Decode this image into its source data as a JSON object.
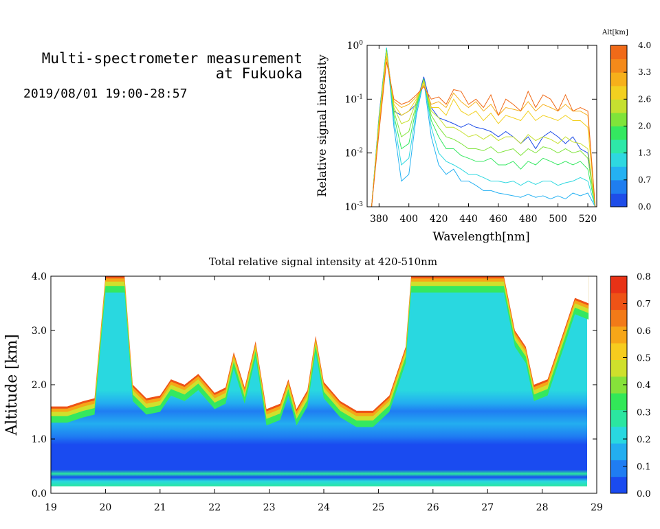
{
  "header": {
    "title_line1": "Multi-spectrometer measurement",
    "title_line2": "at Fukuoka",
    "date_range": "2019/08/01 19:00-28:57"
  },
  "chart_data": [
    {
      "type": "line",
      "xlabel": "Wavelength[nm]",
      "ylabel": "Relative signal intensity",
      "yscale": "log",
      "xlim": [
        372,
        526
      ],
      "ylim": [
        0.001,
        1
      ],
      "x_ticks": [
        "380",
        "400",
        "420",
        "440",
        "460",
        "480",
        "500",
        "520"
      ],
      "y_ticks": [
        "10^-3",
        "10^-2",
        "10^-1",
        "10^0"
      ],
      "colorbar": {
        "label": "Alt[km]",
        "ticks": [
          "0.0",
          "0.7",
          "1.3",
          "2.0",
          "2.6",
          "3.3",
          "4.0"
        ],
        "colors": [
          "#1e4de8",
          "#1f7ef0",
          "#24b1f2",
          "#2ed8e0",
          "#2ee8a8",
          "#34e860",
          "#7fe43a",
          "#c6e030",
          "#f2d020",
          "#f6b01a",
          "#f48a1a",
          "#f06a18"
        ]
      },
      "x": [
        375,
        380,
        385,
        390,
        395,
        400,
        405,
        410,
        415,
        420,
        425,
        430,
        435,
        440,
        445,
        450,
        455,
        460,
        465,
        470,
        475,
        480,
        485,
        490,
        495,
        500,
        505,
        510,
        515,
        520,
        525
      ],
      "series": [
        {
          "color": "#1e4de8",
          "values": [
            0.001,
            0.05,
            0.9,
            0.06,
            0.05,
            0.06,
            0.08,
            0.26,
            0.07,
            0.045,
            0.04,
            0.035,
            0.03,
            0.035,
            0.03,
            0.028,
            0.025,
            0.02,
            0.025,
            0.02,
            0.015,
            0.02,
            0.012,
            0.02,
            0.025,
            0.02,
            0.015,
            0.02,
            0.012,
            0.01,
            0.001
          ]
        },
        {
          "color": "#24b1f2",
          "values": [
            0.001,
            0.04,
            0.9,
            0.03,
            0.003,
            0.004,
            0.05,
            0.22,
            0.02,
            0.006,
            0.004,
            0.005,
            0.003,
            0.003,
            0.0025,
            0.002,
            0.002,
            0.0018,
            0.0017,
            0.0016,
            0.0015,
            0.0017,
            0.0015,
            0.0016,
            0.0014,
            0.0016,
            0.0014,
            0.0018,
            0.0016,
            0.0018,
            0.001
          ]
        },
        {
          "color": "#2ed8e0",
          "values": [
            0.001,
            0.045,
            0.9,
            0.04,
            0.006,
            0.008,
            0.06,
            0.24,
            0.03,
            0.01,
            0.007,
            0.006,
            0.005,
            0.004,
            0.004,
            0.0035,
            0.003,
            0.003,
            0.0028,
            0.003,
            0.0025,
            0.003,
            0.0026,
            0.003,
            0.003,
            0.0025,
            0.0028,
            0.003,
            0.0035,
            0.003,
            0.001
          ]
        },
        {
          "color": "#34e860",
          "values": [
            0.001,
            0.045,
            0.85,
            0.05,
            0.012,
            0.015,
            0.07,
            0.24,
            0.04,
            0.02,
            0.012,
            0.012,
            0.009,
            0.008,
            0.007,
            0.007,
            0.008,
            0.006,
            0.006,
            0.007,
            0.005,
            0.007,
            0.006,
            0.008,
            0.007,
            0.006,
            0.007,
            0.006,
            0.007,
            0.005,
            0.001
          ]
        },
        {
          "color": "#7fe43a",
          "values": [
            0.001,
            0.045,
            0.8,
            0.06,
            0.02,
            0.025,
            0.08,
            0.23,
            0.05,
            0.03,
            0.02,
            0.018,
            0.015,
            0.012,
            0.012,
            0.011,
            0.013,
            0.01,
            0.011,
            0.012,
            0.009,
            0.012,
            0.01,
            0.013,
            0.012,
            0.01,
            0.012,
            0.01,
            0.011,
            0.008,
            0.001
          ]
        },
        {
          "color": "#c6e030",
          "values": [
            0.001,
            0.04,
            0.75,
            0.07,
            0.035,
            0.04,
            0.09,
            0.22,
            0.06,
            0.045,
            0.03,
            0.03,
            0.025,
            0.02,
            0.022,
            0.018,
            0.022,
            0.017,
            0.02,
            0.02,
            0.015,
            0.022,
            0.017,
            0.02,
            0.018,
            0.015,
            0.02,
            0.016,
            0.015,
            0.012,
            0.001
          ]
        },
        {
          "color": "#f2d020",
          "values": [
            0.001,
            0.035,
            0.7,
            0.08,
            0.05,
            0.06,
            0.1,
            0.2,
            0.07,
            0.07,
            0.05,
            0.1,
            0.06,
            0.05,
            0.06,
            0.04,
            0.055,
            0.035,
            0.05,
            0.045,
            0.04,
            0.06,
            0.04,
            0.05,
            0.045,
            0.04,
            0.05,
            0.04,
            0.04,
            0.03,
            0.001
          ]
        },
        {
          "color": "#f6b01a",
          "values": [
            0.001,
            0.03,
            0.6,
            0.09,
            0.07,
            0.08,
            0.11,
            0.18,
            0.08,
            0.09,
            0.07,
            0.13,
            0.09,
            0.07,
            0.09,
            0.06,
            0.08,
            0.05,
            0.07,
            0.065,
            0.06,
            0.09,
            0.06,
            0.08,
            0.07,
            0.06,
            0.08,
            0.06,
            0.06,
            0.05,
            0.001
          ]
        },
        {
          "color": "#f06a18",
          "values": [
            0.001,
            0.025,
            0.5,
            0.1,
            0.08,
            0.09,
            0.12,
            0.17,
            0.1,
            0.11,
            0.08,
            0.15,
            0.14,
            0.08,
            0.1,
            0.07,
            0.12,
            0.05,
            0.1,
            0.08,
            0.06,
            0.14,
            0.07,
            0.12,
            0.1,
            0.06,
            0.12,
            0.06,
            0.07,
            0.06,
            0.001
          ]
        }
      ]
    },
    {
      "type": "heatmap",
      "title": "Total relative signal intensity at 420-510nm",
      "xlabel": "",
      "ylabel": "Altitude [km]",
      "xlim": [
        19,
        29
      ],
      "ylim": [
        0,
        4
      ],
      "x_ticks": [
        "19",
        "20",
        "21",
        "22",
        "23",
        "24",
        "25",
        "26",
        "27",
        "28",
        "29"
      ],
      "y_ticks": [
        "0.0",
        "1.0",
        "2.0",
        "3.0",
        "4.0"
      ],
      "colorbar": {
        "ticks": [
          "0.0",
          "0.1",
          "0.2",
          "0.3",
          "0.4",
          "0.5",
          "0.6",
          "0.7",
          "0.8"
        ],
        "range": [
          0,
          0.8
        ],
        "colors": [
          "#1a4bf0",
          "#1f7df2",
          "#23aef0",
          "#29d8e0",
          "#2be6a0",
          "#32e858",
          "#86e23a",
          "#cfe02c",
          "#f6cc1e",
          "#f6a618",
          "#f27a18",
          "#ee5316",
          "#e83216"
        ]
      },
      "cloud_base_km": [
        {
          "t": 19.0,
          "z": 1.6
        },
        {
          "t": 19.3,
          "z": 1.6
        },
        {
          "t": 19.6,
          "z": 1.7
        },
        {
          "t": 19.8,
          "z": 1.75
        },
        {
          "t": 20.0,
          "z": 4.0
        },
        {
          "t": 20.35,
          "z": 4.0
        },
        {
          "t": 20.5,
          "z": 2.0
        },
        {
          "t": 20.75,
          "z": 1.75
        },
        {
          "t": 21.0,
          "z": 1.8
        },
        {
          "t": 21.2,
          "z": 2.1
        },
        {
          "t": 21.45,
          "z": 2.0
        },
        {
          "t": 21.7,
          "z": 2.2
        },
        {
          "t": 22.0,
          "z": 1.85
        },
        {
          "t": 22.2,
          "z": 1.95
        },
        {
          "t": 22.35,
          "z": 2.6
        },
        {
          "t": 22.55,
          "z": 1.95
        },
        {
          "t": 22.75,
          "z": 2.8
        },
        {
          "t": 22.95,
          "z": 1.55
        },
        {
          "t": 23.2,
          "z": 1.65
        },
        {
          "t": 23.35,
          "z": 2.1
        },
        {
          "t": 23.5,
          "z": 1.55
        },
        {
          "t": 23.7,
          "z": 1.9
        },
        {
          "t": 23.85,
          "z": 2.9
        },
        {
          "t": 24.0,
          "z": 2.05
        },
        {
          "t": 24.3,
          "z": 1.7
        },
        {
          "t": 24.6,
          "z": 1.52
        },
        {
          "t": 24.9,
          "z": 1.52
        },
        {
          "t": 25.2,
          "z": 1.8
        },
        {
          "t": 25.5,
          "z": 2.7
        },
        {
          "t": 25.6,
          "z": 4.0
        },
        {
          "t": 27.3,
          "z": 4.0
        },
        {
          "t": 27.5,
          "z": 3.0
        },
        {
          "t": 27.7,
          "z": 2.7
        },
        {
          "t": 27.85,
          "z": 2.0
        },
        {
          "t": 28.1,
          "z": 2.1
        },
        {
          "t": 28.4,
          "z": 3.0
        },
        {
          "t": 28.6,
          "z": 3.6
        },
        {
          "t": 28.85,
          "z": 3.5
        }
      ]
    }
  ]
}
